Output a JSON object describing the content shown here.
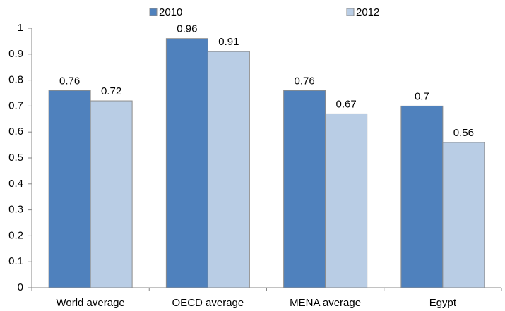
{
  "chart_data": {
    "type": "bar",
    "categories": [
      "World average",
      "OECD average",
      "MENA average",
      "Egypt"
    ],
    "series": [
      {
        "name": "2010",
        "color": "#4f81bd",
        "values": [
          0.76,
          0.96,
          0.76,
          0.7
        ]
      },
      {
        "name": "2012",
        "color": "#b9cde5",
        "values": [
          0.72,
          0.91,
          0.67,
          0.56
        ]
      }
    ],
    "ylim": [
      0,
      1
    ],
    "yticks": [
      0,
      0.1,
      0.2,
      0.3,
      0.4,
      0.5,
      0.6,
      0.7,
      0.8,
      0.9,
      1
    ],
    "grid": false,
    "legend": "top"
  }
}
